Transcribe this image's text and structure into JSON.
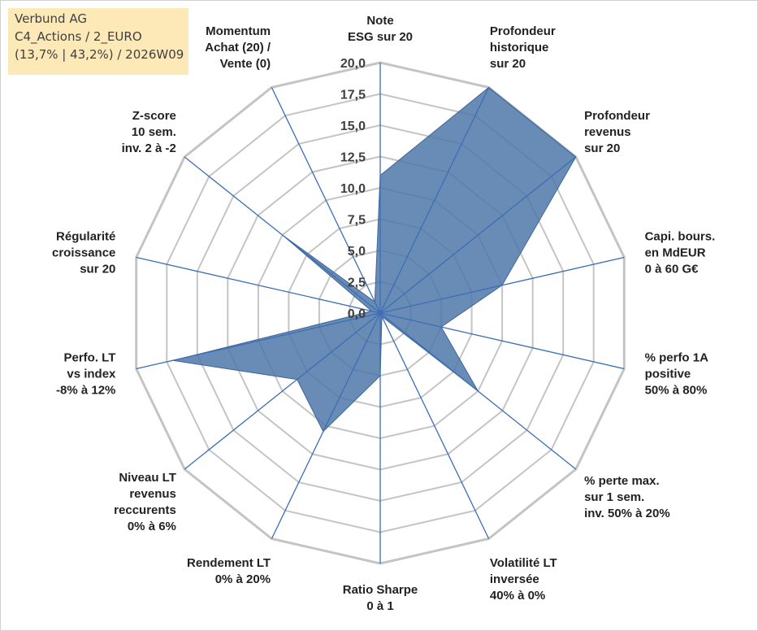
{
  "header": {
    "line1": "Verbund AG",
    "line2": "C4_Actions / 2_EURO",
    "line3": "(13,7% | 43,2%) / 2026W09"
  },
  "chart_data": {
    "type": "radar",
    "rmin": 0,
    "rmax": 20,
    "ticks": [
      "0,0",
      "2,5",
      "5,0",
      "7,5",
      "10,0",
      "12,5",
      "15,0",
      "17,5",
      "20,0"
    ],
    "axes": [
      [
        "Note",
        "ESG sur 20"
      ],
      [
        "Profondeur",
        "historique",
        "sur 20"
      ],
      [
        "Profondeur",
        "revenus",
        "sur 20"
      ],
      [
        "Capi. bours.",
        "en MdEUR",
        "0 à 60 G€"
      ],
      [
        "% perfo 1A",
        "positive",
        "50% à 80%"
      ],
      [
        "% perte max.",
        "sur 1 sem.",
        "inv. 50% à 20%"
      ],
      [
        "Volatilité LT",
        "inversée",
        "40% à 0%"
      ],
      [
        "Ratio Sharpe",
        "0 à 1"
      ],
      [
        "Rendement LT",
        "0% à 20%"
      ],
      [
        "Niveau LT",
        "revenus",
        "reccurents",
        "0% à 6%"
      ],
      [
        "Perfo. LT",
        "vs index",
        "-8% à 12%"
      ],
      [
        "Régularité",
        "croissance",
        "sur 20"
      ],
      [
        "Z-score",
        "10 sem.",
        "inv. 2 à -2"
      ],
      [
        "Momentum",
        "Achat (20) /",
        "Vente (0)"
      ]
    ],
    "values": [
      11,
      20,
      20,
      10,
      5,
      10,
      0.3,
      5,
      10.5,
      8.5,
      17,
      0.7,
      10,
      1
    ],
    "colors": {
      "fill": "#4e78a8",
      "stroke": "#3d6698",
      "axis": "#3d6db5",
      "grid": "#c4c4c4"
    }
  }
}
